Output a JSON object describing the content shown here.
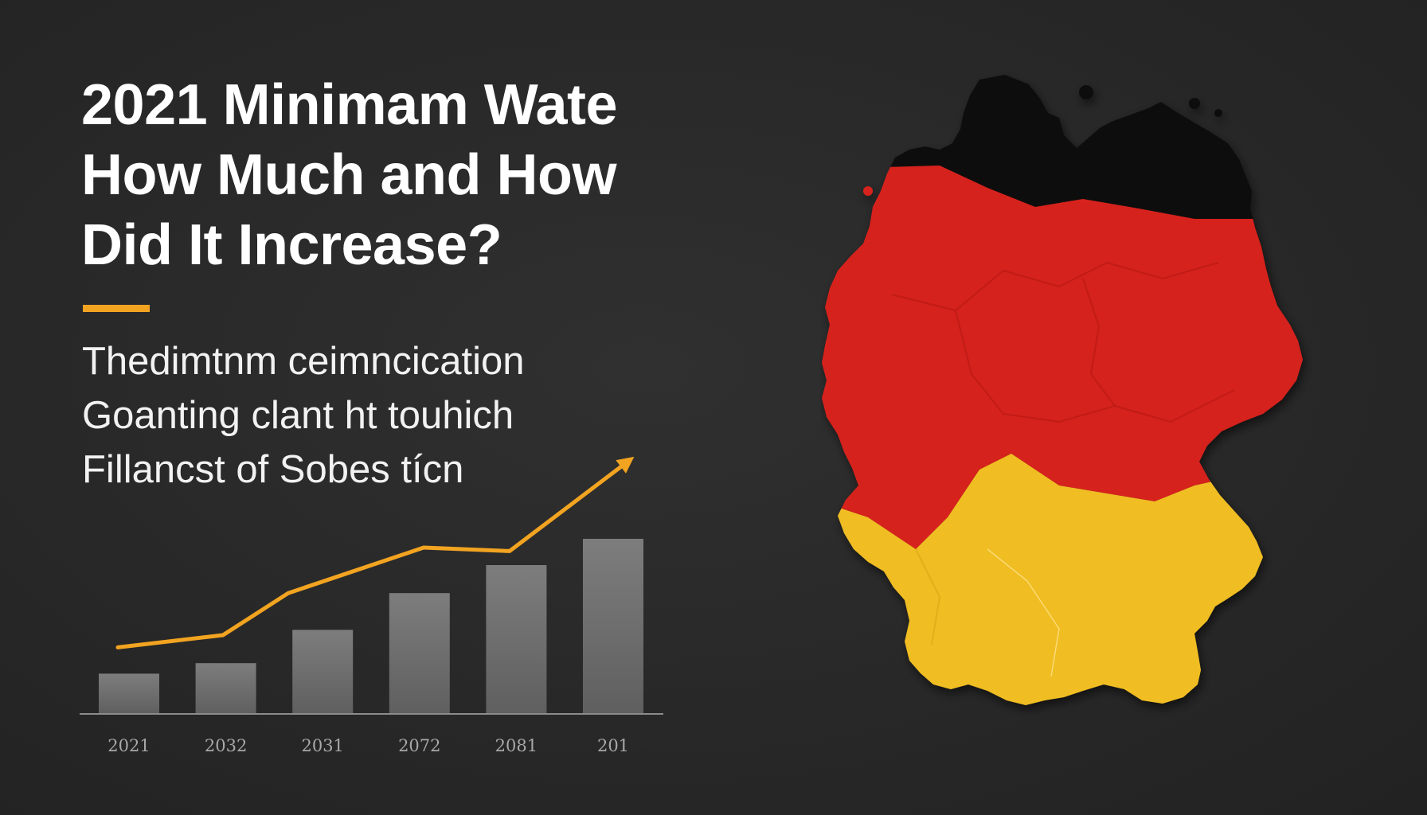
{
  "headline": {
    "line1": "2021 Minimam Wate",
    "line2": "How Much and How",
    "line3": "Did It Increase?"
  },
  "subtitle": {
    "line1": "Thedimtnm ceimncication",
    "line2": "Goanting clant ht touhich",
    "line3": "Fillancst of Sobes tícn"
  },
  "colors": {
    "accent": "#f2a421",
    "bar": "#6e6e6e",
    "map_black": "#0d0d0d",
    "map_red": "#d6201e",
    "map_gold": "#f0bd22"
  },
  "chart_data": {
    "type": "bar",
    "title": "",
    "xlabel": "",
    "ylabel": "",
    "categories": [
      "2021",
      "2032",
      "2031",
      "2072",
      "2081",
      "201"
    ],
    "series": [
      {
        "name": "bars",
        "kind": "bar",
        "values": [
          2.3,
          2.9,
          4.8,
          6.9,
          8.5,
          10.0
        ]
      },
      {
        "name": "trend",
        "kind": "line",
        "values": [
          3.8,
          4.5,
          6.9,
          9.5,
          9.3,
          14.4
        ]
      }
    ],
    "ylim": [
      0,
      15
    ],
    "grid": false,
    "legend": "none"
  },
  "map": {
    "icon": "germany-map-icon"
  }
}
